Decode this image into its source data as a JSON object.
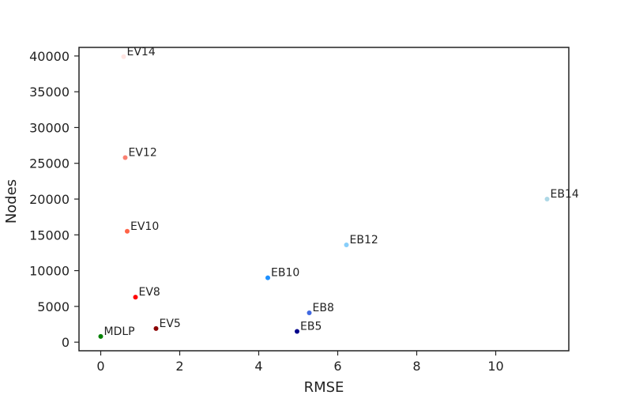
{
  "chart_data": {
    "type": "scatter",
    "title": "",
    "xlabel": "RMSE",
    "ylabel": "Nodes",
    "xlim": [
      -0.55,
      11.85
    ],
    "ylim": [
      -1200,
      41200
    ],
    "xticks": [
      0,
      2,
      4,
      6,
      8,
      10
    ],
    "yticks": [
      0,
      5000,
      10000,
      15000,
      20000,
      25000,
      30000,
      35000,
      40000
    ],
    "grid": false,
    "points": [
      {
        "label": "MDLP",
        "x": 0.0,
        "y": 800,
        "color": "#008000"
      },
      {
        "label": "EV5",
        "x": 1.4,
        "y": 1900,
        "color": "#8b0000"
      },
      {
        "label": "EV8",
        "x": 0.88,
        "y": 6300,
        "color": "#ff0000"
      },
      {
        "label": "EV10",
        "x": 0.67,
        "y": 15500,
        "color": "#ff6347"
      },
      {
        "label": "EV12",
        "x": 0.62,
        "y": 25800,
        "color": "#fa8072"
      },
      {
        "label": "EV14",
        "x": 0.58,
        "y": 39900,
        "color": "#ffe4e1"
      },
      {
        "label": "EB5",
        "x": 4.97,
        "y": 1500,
        "color": "#00008b"
      },
      {
        "label": "EB8",
        "x": 5.28,
        "y": 4100,
        "color": "#4169e1"
      },
      {
        "label": "EB10",
        "x": 4.23,
        "y": 9000,
        "color": "#1e90ff"
      },
      {
        "label": "EB12",
        "x": 6.22,
        "y": 13600,
        "color": "#87cefa"
      },
      {
        "label": "EB14",
        "x": 11.3,
        "y": 20000,
        "color": "#add8e6"
      }
    ]
  }
}
